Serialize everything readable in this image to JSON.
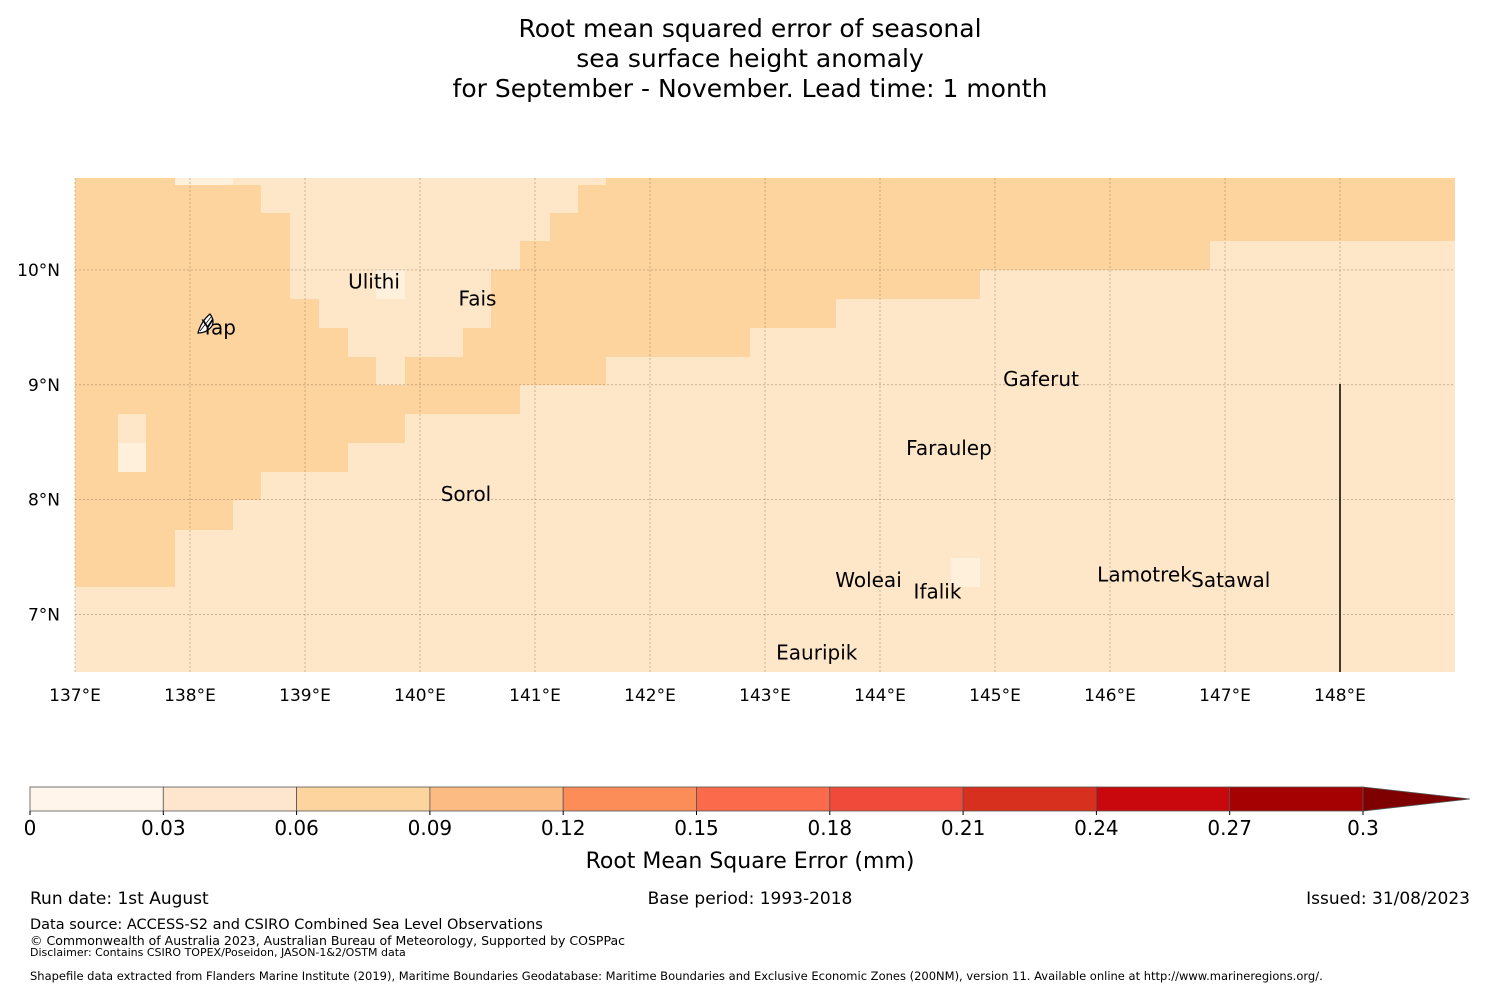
{
  "title": {
    "line1": "Root mean squared error of seasonal",
    "line2": "sea surface height anomaly",
    "line3": "for September - November. Lead time: 1 month"
  },
  "map": {
    "lon_range": [
      137,
      149
    ],
    "lat_range": [
      6.5,
      10.8
    ],
    "lon_tick_labels": [
      "137°E",
      "138°E",
      "139°E",
      "140°E",
      "141°E",
      "142°E",
      "143°E",
      "144°E",
      "145°E",
      "146°E",
      "147°E",
      "148°E"
    ],
    "lat_tick_labels": [
      "10°N",
      "9°N",
      "8°N",
      "7°N"
    ],
    "grid": true,
    "colors": {
      "lightest": "#fff0dc",
      "light": "#fee6c8",
      "medium": "#fdd49e"
    },
    "places": [
      {
        "name": "Yap",
        "lon": 138.25,
        "lat": 9.5
      },
      {
        "name": "Ulithi",
        "lon": 139.6,
        "lat": 9.9
      },
      {
        "name": "Fais",
        "lon": 140.5,
        "lat": 9.75
      },
      {
        "name": "Gaferut",
        "lon": 145.4,
        "lat": 9.05
      },
      {
        "name": "Faraulep",
        "lon": 144.6,
        "lat": 8.45
      },
      {
        "name": "Sorol",
        "lon": 140.4,
        "lat": 8.05
      },
      {
        "name": "Woleai",
        "lon": 143.9,
        "lat": 7.3
      },
      {
        "name": "Ifalik",
        "lon": 144.5,
        "lat": 7.2
      },
      {
        "name": "Lamotrek",
        "lon": 146.3,
        "lat": 7.35
      },
      {
        "name": "Satawal",
        "lon": 147.05,
        "lat": 7.3
      },
      {
        "name": "Eauripik",
        "lon": 143.45,
        "lat": 6.67
      }
    ]
  },
  "colorbar": {
    "ticks": [
      "0",
      "0.03",
      "0.06",
      "0.09",
      "0.12",
      "0.15",
      "0.18",
      "0.21",
      "0.24",
      "0.27",
      "0.3"
    ],
    "colors": [
      "#fff5eb",
      "#fee6ce",
      "#fdd49e",
      "#fdbb84",
      "#fc8d59",
      "#fb6a4a",
      "#ef4a3a",
      "#d7301f",
      "#c8080c",
      "#a50002"
    ],
    "extend_color": "#7f0000",
    "label": "Root Mean Square Error (mm)"
  },
  "footer": {
    "run_date": "Run date: 1st August",
    "base_period": "Base period: 1993-2018",
    "issued": "Issued: 31/08/2023",
    "data_source": "Data source: ACCESS-S2 and CSIRO Combined Sea Level Observations",
    "copyright": "© Commonwealth of Australia 2023, Australian Bureau of Meteorology, Supported by COSPPac",
    "disclaimer": "Disclaimer: Contains CSIRO TOPEX/Poseidon, JASON-1&2/OSTM data",
    "shapefile": "Shapefile data extracted from Flanders Marine Institute (2019), Maritime Boundaries Geodatabase: Maritime Boundaries and Exclusive Economic Zones (200NM), version 11. Available online at http://www.marineregions.org/."
  }
}
